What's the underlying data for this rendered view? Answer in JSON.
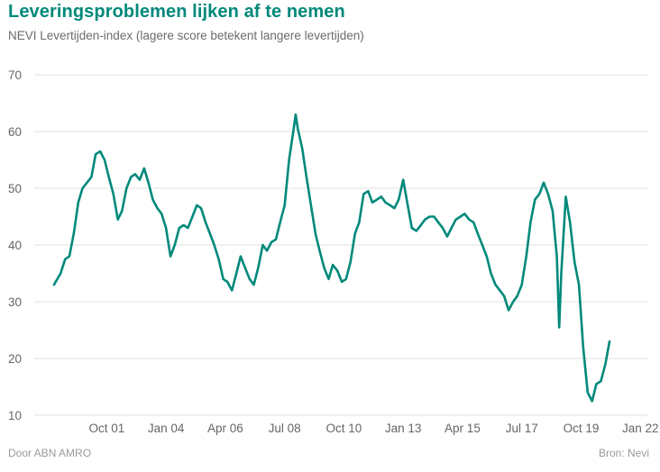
{
  "header": {
    "title": "Leveringsproblemen lijken af te nemen",
    "subtitle": "NEVI Levertijden-index (lagere score betekent langere levertijden)"
  },
  "footer": {
    "source_left": "Door ABN AMRO",
    "source_right": "Bron: Nevi"
  },
  "colors": {
    "line": "#00897b",
    "grid": "#e2e2e2",
    "title": "#00897b"
  },
  "chart_data": {
    "type": "line",
    "title": "Leveringsproblemen lijken af te nemen",
    "subtitle": "NEVI Levertijden-index (lagere score betekent langere levertijden)",
    "xlabel": "",
    "ylabel": "",
    "ylim": [
      10,
      70
    ],
    "yticks": [
      10,
      20,
      30,
      40,
      50,
      60,
      70
    ],
    "grid": true,
    "x_start": "1999-10",
    "x_end": "2022-01",
    "xticks": [
      {
        "label": "Oct 01",
        "year": 2001.75
      },
      {
        "label": "Jan 04",
        "year": 2004.0
      },
      {
        "label": "Apr 06",
        "year": 2006.25
      },
      {
        "label": "Jul 08",
        "year": 2008.5
      },
      {
        "label": "Oct 10",
        "year": 2010.75
      },
      {
        "label": "Jan 13",
        "year": 2013.0
      },
      {
        "label": "Apr 15",
        "year": 2015.25
      },
      {
        "label": "Jul 17",
        "year": 2017.5
      },
      {
        "label": "Oct 19",
        "year": 2019.75
      },
      {
        "label": "Jan 22",
        "year": 2022.0
      }
    ],
    "series": [
      {
        "name": "NEVI Levertijden-index",
        "values": [
          [
            1999.75,
            33.0
          ],
          [
            2000.0,
            35.0
          ],
          [
            2000.17,
            37.5
          ],
          [
            2000.33,
            38.0
          ],
          [
            2000.5,
            42.0
          ],
          [
            2000.67,
            47.5
          ],
          [
            2000.83,
            50.0
          ],
          [
            2001.0,
            51.0
          ],
          [
            2001.17,
            52.0
          ],
          [
            2001.33,
            56.0
          ],
          [
            2001.5,
            56.5
          ],
          [
            2001.67,
            55.0
          ],
          [
            2001.83,
            52.0
          ],
          [
            2002.0,
            49.0
          ],
          [
            2002.17,
            44.5
          ],
          [
            2002.33,
            46.0
          ],
          [
            2002.5,
            50.0
          ],
          [
            2002.67,
            52.0
          ],
          [
            2002.83,
            52.5
          ],
          [
            2003.0,
            51.5
          ],
          [
            2003.17,
            53.5
          ],
          [
            2003.33,
            51.0
          ],
          [
            2003.5,
            48.0
          ],
          [
            2003.67,
            46.5
          ],
          [
            2003.83,
            45.5
          ],
          [
            2004.0,
            43.0
          ],
          [
            2004.17,
            38.0
          ],
          [
            2004.33,
            40.0
          ],
          [
            2004.5,
            43.0
          ],
          [
            2004.67,
            43.5
          ],
          [
            2004.83,
            43.0
          ],
          [
            2005.0,
            45.0
          ],
          [
            2005.17,
            47.0
          ],
          [
            2005.33,
            46.5
          ],
          [
            2005.5,
            44.0
          ],
          [
            2005.67,
            42.0
          ],
          [
            2005.83,
            40.0
          ],
          [
            2006.0,
            37.5
          ],
          [
            2006.17,
            34.0
          ],
          [
            2006.33,
            33.5
          ],
          [
            2006.5,
            32.0
          ],
          [
            2006.67,
            35.0
          ],
          [
            2006.83,
            38.0
          ],
          [
            2007.0,
            36.0
          ],
          [
            2007.17,
            34.0
          ],
          [
            2007.33,
            33.0
          ],
          [
            2007.5,
            36.0
          ],
          [
            2007.67,
            40.0
          ],
          [
            2007.83,
            39.0
          ],
          [
            2008.0,
            40.5
          ],
          [
            2008.17,
            41.0
          ],
          [
            2008.33,
            44.0
          ],
          [
            2008.5,
            47.0
          ],
          [
            2008.67,
            55.0
          ],
          [
            2008.83,
            60.0
          ],
          [
            2008.92,
            63.0
          ],
          [
            2009.0,
            60.5
          ],
          [
            2009.17,
            57.0
          ],
          [
            2009.33,
            52.0
          ],
          [
            2009.5,
            47.0
          ],
          [
            2009.67,
            42.0
          ],
          [
            2009.83,
            39.0
          ],
          [
            2010.0,
            36.0
          ],
          [
            2010.17,
            34.0
          ],
          [
            2010.33,
            36.5
          ],
          [
            2010.5,
            35.5
          ],
          [
            2010.67,
            33.5
          ],
          [
            2010.83,
            34.0
          ],
          [
            2011.0,
            37.0
          ],
          [
            2011.17,
            42.0
          ],
          [
            2011.33,
            44.0
          ],
          [
            2011.5,
            49.0
          ],
          [
            2011.67,
            49.5
          ],
          [
            2011.83,
            47.5
          ],
          [
            2012.0,
            48.0
          ],
          [
            2012.17,
            48.5
          ],
          [
            2012.33,
            47.5
          ],
          [
            2012.5,
            47.0
          ],
          [
            2012.67,
            46.5
          ],
          [
            2012.83,
            48.0
          ],
          [
            2013.0,
            51.5
          ],
          [
            2013.17,
            47.0
          ],
          [
            2013.33,
            43.0
          ],
          [
            2013.5,
            42.5
          ],
          [
            2013.67,
            43.5
          ],
          [
            2013.83,
            44.5
          ],
          [
            2014.0,
            45.0
          ],
          [
            2014.17,
            45.0
          ],
          [
            2014.33,
            44.0
          ],
          [
            2014.5,
            43.0
          ],
          [
            2014.67,
            41.5
          ],
          [
            2014.83,
            43.0
          ],
          [
            2015.0,
            44.5
          ],
          [
            2015.17,
            45.0
          ],
          [
            2015.33,
            45.5
          ],
          [
            2015.5,
            44.5
          ],
          [
            2015.67,
            44.0
          ],
          [
            2015.83,
            42.0
          ],
          [
            2016.0,
            40.0
          ],
          [
            2016.17,
            38.0
          ],
          [
            2016.33,
            35.0
          ],
          [
            2016.5,
            33.0
          ],
          [
            2016.67,
            32.0
          ],
          [
            2016.83,
            31.0
          ],
          [
            2017.0,
            28.5
          ],
          [
            2017.17,
            30.0
          ],
          [
            2017.33,
            31.0
          ],
          [
            2017.5,
            33.0
          ],
          [
            2017.67,
            38.0
          ],
          [
            2017.83,
            44.0
          ],
          [
            2018.0,
            48.0
          ],
          [
            2018.17,
            49.0
          ],
          [
            2018.33,
            51.0
          ],
          [
            2018.5,
            49.0
          ],
          [
            2018.67,
            46.0
          ],
          [
            2018.83,
            38.0
          ],
          [
            2018.92,
            25.5
          ],
          [
            2019.0,
            35.0
          ],
          [
            2019.17,
            48.5
          ],
          [
            2019.33,
            44.0
          ],
          [
            2019.5,
            37.0
          ],
          [
            2019.67,
            33.0
          ],
          [
            2019.83,
            22.0
          ],
          [
            2020.0,
            14.0
          ],
          [
            2020.17,
            12.5
          ],
          [
            2020.33,
            15.5
          ],
          [
            2020.5,
            16.0
          ],
          [
            2020.67,
            19.0
          ],
          [
            2020.83,
            23.0
          ]
        ]
      }
    ]
  }
}
